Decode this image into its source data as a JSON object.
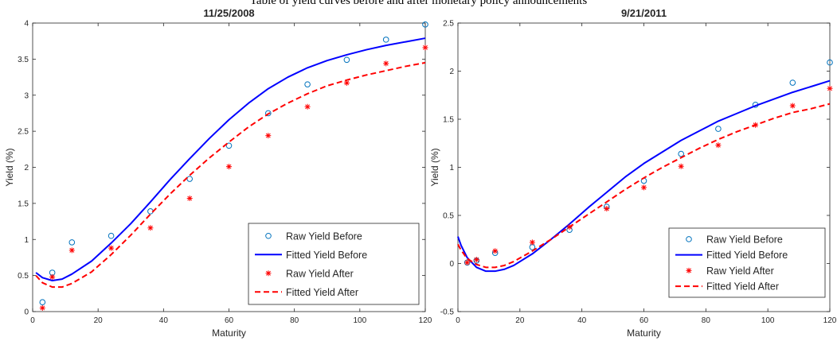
{
  "page_header": "Table of yield curves before and after monetary policy announcements",
  "chart_data": [
    {
      "type": "line",
      "title": "11/25/2008",
      "xlabel": "Maturity",
      "ylabel": "Yield (%)",
      "xlim": [
        0,
        120
      ],
      "ylim": [
        0,
        4
      ],
      "xticks": [
        0,
        20,
        40,
        60,
        80,
        100,
        120
      ],
      "yticks": [
        0,
        0.5,
        1,
        1.5,
        2,
        2.5,
        3,
        3.5,
        4
      ],
      "ytick_labels": [
        "0",
        "0.5",
        "1",
        "1.5",
        "2",
        "2.5",
        "3",
        "3.5",
        "4"
      ],
      "grid": false,
      "legend_position": "bottom-right",
      "series": [
        {
          "name": "Raw Yield Before",
          "kind": "scatter",
          "marker": "circle",
          "color": "#0072BD",
          "x": [
            3,
            6,
            12,
            24,
            36,
            48,
            60,
            72,
            84,
            96,
            108,
            120
          ],
          "y": [
            0.13,
            0.54,
            0.96,
            1.05,
            1.39,
            1.84,
            2.3,
            2.75,
            3.15,
            3.49,
            3.77,
            3.98
          ]
        },
        {
          "name": "Fitted Yield Before",
          "kind": "line",
          "style": "solid",
          "color": "#0000FF",
          "x": [
            1,
            3,
            6,
            9,
            12,
            18,
            24,
            30,
            36,
            42,
            48,
            54,
            60,
            66,
            72,
            78,
            84,
            90,
            96,
            102,
            108,
            114,
            120
          ],
          "y": [
            0.54,
            0.47,
            0.43,
            0.45,
            0.52,
            0.7,
            0.95,
            1.22,
            1.52,
            1.83,
            2.12,
            2.4,
            2.66,
            2.89,
            3.09,
            3.25,
            3.38,
            3.48,
            3.56,
            3.63,
            3.69,
            3.74,
            3.79
          ]
        },
        {
          "name": "Raw Yield After",
          "kind": "scatter",
          "marker": "asterisk",
          "color": "#FF0000",
          "x": [
            3,
            6,
            12,
            24,
            36,
            48,
            60,
            72,
            84,
            96,
            108,
            120
          ],
          "y": [
            0.05,
            0.48,
            0.85,
            0.88,
            1.16,
            1.57,
            2.01,
            2.44,
            2.84,
            3.17,
            3.44,
            3.66
          ]
        },
        {
          "name": "Fitted Yield After",
          "kind": "line",
          "style": "dashed",
          "color": "#FF0000",
          "x": [
            1,
            3,
            6,
            9,
            12,
            18,
            24,
            30,
            36,
            42,
            48,
            54,
            60,
            66,
            72,
            78,
            84,
            90,
            96,
            102,
            108,
            114,
            120
          ],
          "y": [
            0.5,
            0.4,
            0.34,
            0.34,
            0.39,
            0.55,
            0.79,
            1.06,
            1.35,
            1.63,
            1.89,
            2.13,
            2.35,
            2.56,
            2.74,
            2.89,
            3.02,
            3.13,
            3.21,
            3.28,
            3.34,
            3.4,
            3.45
          ]
        }
      ]
    },
    {
      "type": "line",
      "title": "9/21/2011",
      "xlabel": "Maturity",
      "ylabel": "Yield (%)",
      "xlim": [
        0,
        120
      ],
      "ylim": [
        -0.5,
        2.5
      ],
      "xticks": [
        0,
        20,
        40,
        60,
        80,
        100,
        120
      ],
      "yticks": [
        -0.5,
        0,
        0.5,
        1,
        1.5,
        2,
        2.5
      ],
      "ytick_labels": [
        "-0.5",
        "0",
        "0.5",
        "1",
        "1.5",
        "2",
        "2.5"
      ],
      "grid": false,
      "legend_position": "bottom-right",
      "series": [
        {
          "name": "Raw Yield Before",
          "kind": "scatter",
          "marker": "circle",
          "color": "#0072BD",
          "x": [
            3,
            6,
            12,
            24,
            36,
            48,
            60,
            72,
            84,
            96,
            108,
            120
          ],
          "y": [
            0.01,
            0.03,
            0.11,
            0.17,
            0.35,
            0.59,
            0.86,
            1.14,
            1.4,
            1.65,
            1.88,
            2.09
          ]
        },
        {
          "name": "Fitted Yield Before",
          "kind": "line",
          "style": "solid",
          "color": "#0000FF",
          "x": [
            0,
            1,
            3,
            6,
            9,
            12,
            15,
            18,
            24,
            30,
            36,
            42,
            48,
            54,
            60,
            66,
            72,
            78,
            84,
            90,
            96,
            102,
            108,
            114,
            120
          ],
          "y": [
            0.28,
            0.19,
            0.06,
            -0.04,
            -0.08,
            -0.08,
            -0.06,
            -0.02,
            0.1,
            0.25,
            0.41,
            0.58,
            0.74,
            0.9,
            1.04,
            1.16,
            1.28,
            1.38,
            1.48,
            1.56,
            1.64,
            1.71,
            1.78,
            1.84,
            1.9
          ]
        },
        {
          "name": "Raw Yield After",
          "kind": "scatter",
          "marker": "asterisk",
          "color": "#FF0000",
          "x": [
            3,
            6,
            12,
            24,
            36,
            48,
            60,
            72,
            84,
            96,
            108,
            120
          ],
          "y": [
            0.01,
            0.04,
            0.13,
            0.22,
            0.38,
            0.57,
            0.79,
            1.01,
            1.23,
            1.44,
            1.64,
            1.82
          ]
        },
        {
          "name": "Fitted Yield After",
          "kind": "line",
          "style": "dashed",
          "color": "#FF0000",
          "x": [
            0,
            1,
            3,
            6,
            9,
            12,
            15,
            18,
            24,
            30,
            36,
            42,
            48,
            54,
            60,
            66,
            72,
            78,
            84,
            90,
            96,
            102,
            108,
            114,
            120
          ],
          "y": [
            0.2,
            0.14,
            0.05,
            -0.01,
            -0.04,
            -0.04,
            -0.02,
            0.02,
            0.13,
            0.25,
            0.38,
            0.51,
            0.64,
            0.77,
            0.89,
            1.0,
            1.1,
            1.2,
            1.29,
            1.37,
            1.44,
            1.51,
            1.57,
            1.61,
            1.66
          ]
        }
      ]
    }
  ]
}
